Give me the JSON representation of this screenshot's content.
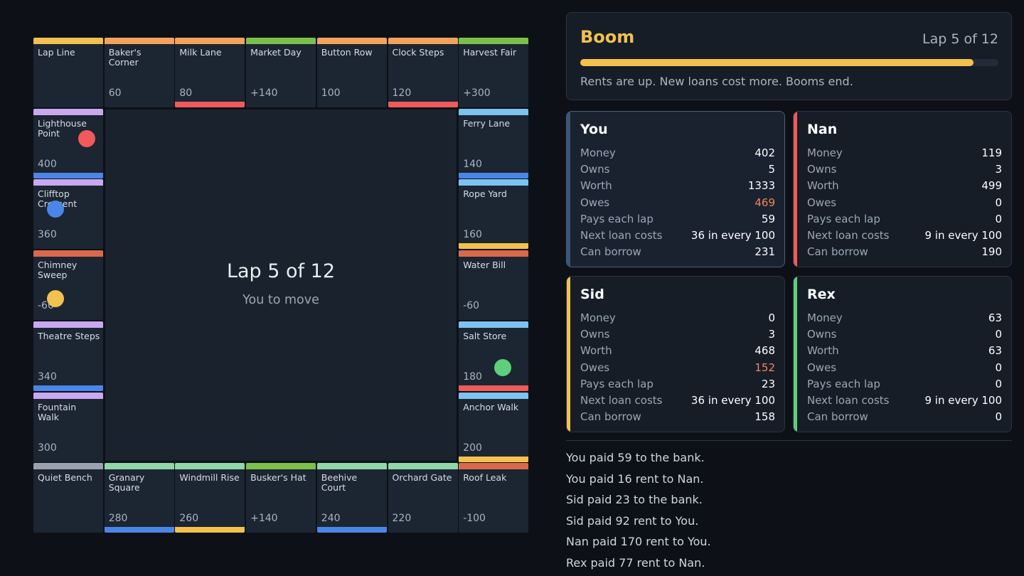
{
  "board": {
    "center_lap": "Lap 5 of 12",
    "center_move": "You to move",
    "tiles": [
      {
        "name": "Lap Line",
        "value": "",
        "top": "#f2c14e",
        "bottom": ""
      },
      {
        "name": "Baker's Corner",
        "value": "60",
        "top": "#f5a35c",
        "bottom": ""
      },
      {
        "name": "Milk Lane",
        "value": "80",
        "top": "#f5a35c",
        "bottom": "#f05a5a"
      },
      {
        "name": "Market Day",
        "value": "+140",
        "top": "#7cc04b",
        "bottom": ""
      },
      {
        "name": "Button Row",
        "value": "100",
        "top": "#f5a35c",
        "bottom": ""
      },
      {
        "name": "Clock Steps",
        "value": "120",
        "top": "#f5a35c",
        "bottom": "#f05a5a"
      },
      {
        "name": "Harvest Fair",
        "value": "+300",
        "top": "#7cc04b",
        "bottom": ""
      },
      {
        "name": "Ferry Lane",
        "value": "140",
        "top": "#7cc3f0",
        "bottom": "#4a86e8"
      },
      {
        "name": "Rope Yard",
        "value": "160",
        "top": "#7cc3f0",
        "bottom": "#f2c14e"
      },
      {
        "name": "Water Bill",
        "value": "-60",
        "top": "#d9694a",
        "bottom": ""
      },
      {
        "name": "Salt Store",
        "value": "180",
        "top": "#7cc3f0",
        "bottom": "#f05a5a"
      },
      {
        "name": "Anchor Walk",
        "value": "200",
        "top": "#7cc3f0",
        "bottom": "#f2c14e"
      },
      {
        "name": "Roof Leak",
        "value": "-100",
        "top": "#d9694a",
        "bottom": ""
      },
      {
        "name": "Orchard Gate",
        "value": "220",
        "top": "#8fd6a8",
        "bottom": ""
      },
      {
        "name": "Beehive Court",
        "value": "240",
        "top": "#8fd6a8",
        "bottom": "#4a86e8"
      },
      {
        "name": "Busker's Hat",
        "value": "+140",
        "top": "#7cc04b",
        "bottom": ""
      },
      {
        "name": "Windmill Rise",
        "value": "260",
        "top": "#8fd6a8",
        "bottom": "#f2c14e"
      },
      {
        "name": "Granary Square",
        "value": "280",
        "top": "#8fd6a8",
        "bottom": "#4a86e8"
      },
      {
        "name": "Quiet Bench",
        "value": "",
        "top": "#9aa3ad",
        "bottom": ""
      },
      {
        "name": "Fountain Walk",
        "value": "300",
        "top": "#c9a8f0",
        "bottom": ""
      },
      {
        "name": "Theatre Steps",
        "value": "340",
        "top": "#c9a8f0",
        "bottom": "#4a86e8"
      },
      {
        "name": "Chimney Sweep",
        "value": "-60",
        "top": "#d9694a",
        "bottom": ""
      },
      {
        "name": "Clifftop Crescent",
        "value": "360",
        "top": "#c9a8f0",
        "bottom": ""
      },
      {
        "name": "Lighthouse Point",
        "value": "400",
        "top": "#c9a8f0",
        "bottom": "#4a86e8"
      }
    ],
    "tokens": [
      {
        "player": "Nan",
        "tile": 23,
        "color": "#f05a5a"
      },
      {
        "player": "You",
        "tile": 22,
        "color": "#4a86e8"
      },
      {
        "player": "Sid",
        "tile": 21,
        "color": "#f2c14e"
      },
      {
        "player": "Rex",
        "tile": 10,
        "color": "#5ecf7a"
      }
    ]
  },
  "event": {
    "title": "Boom",
    "lap": "Lap 5 of 12",
    "progress": 0.94,
    "description": "Rents are up. New loans cost more. Booms end."
  },
  "players": [
    {
      "name": "You",
      "accent": "#3a5578",
      "active": true,
      "rows": [
        {
          "label": "Money",
          "value": "402"
        },
        {
          "label": "Owns",
          "value": "5"
        },
        {
          "label": "Worth",
          "value": "1333"
        },
        {
          "label": "Owes",
          "value": "469",
          "warn": true
        },
        {
          "label": "Pays each lap",
          "value": "59"
        },
        {
          "label": "Next loan costs",
          "value": "36 in every 100"
        },
        {
          "label": "Can borrow",
          "value": "231"
        }
      ]
    },
    {
      "name": "Nan",
      "accent": "#f05a5a",
      "active": false,
      "rows": [
        {
          "label": "Money",
          "value": "119"
        },
        {
          "label": "Owns",
          "value": "3"
        },
        {
          "label": "Worth",
          "value": "499"
        },
        {
          "label": "Owes",
          "value": "0"
        },
        {
          "label": "Pays each lap",
          "value": "0"
        },
        {
          "label": "Next loan costs",
          "value": "9 in every 100"
        },
        {
          "label": "Can borrow",
          "value": "190"
        }
      ]
    },
    {
      "name": "Sid",
      "accent": "#f2c14e",
      "active": false,
      "rows": [
        {
          "label": "Money",
          "value": "0"
        },
        {
          "label": "Owns",
          "value": "3"
        },
        {
          "label": "Worth",
          "value": "468"
        },
        {
          "label": "Owes",
          "value": "152",
          "warn": true
        },
        {
          "label": "Pays each lap",
          "value": "23"
        },
        {
          "label": "Next loan costs",
          "value": "36 in every 100"
        },
        {
          "label": "Can borrow",
          "value": "158"
        }
      ]
    },
    {
      "name": "Rex",
      "accent": "#5ecf7a",
      "active": false,
      "rows": [
        {
          "label": "Money",
          "value": "63"
        },
        {
          "label": "Owns",
          "value": "0"
        },
        {
          "label": "Worth",
          "value": "63"
        },
        {
          "label": "Owes",
          "value": "0"
        },
        {
          "label": "Pays each lap",
          "value": "0"
        },
        {
          "label": "Next loan costs",
          "value": "9 in every 100"
        },
        {
          "label": "Can borrow",
          "value": "0"
        }
      ]
    }
  ],
  "log": [
    "You paid 59 to the bank.",
    "You paid 16 rent to Nan.",
    "Sid paid 23 to the bank.",
    "Sid paid 92 rent to You.",
    "Nan paid 170 rent to You.",
    "Rex paid 77 rent to Nan."
  ]
}
